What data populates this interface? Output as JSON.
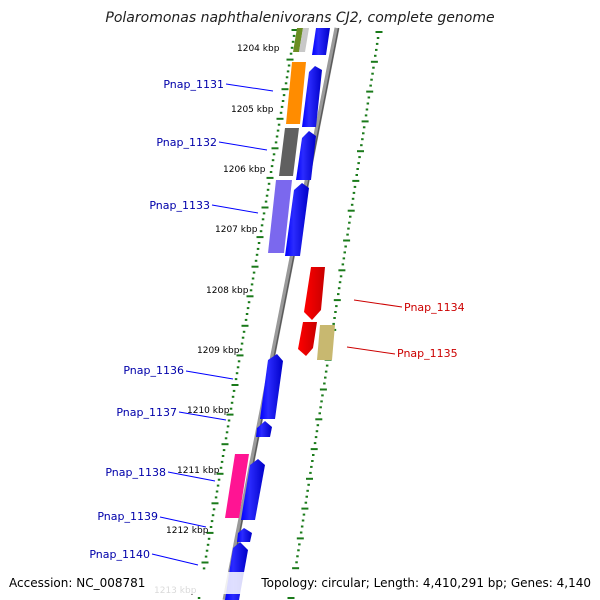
{
  "title": "Polaromonas naphthalenivorans CJ2, complete genome",
  "footer": {
    "accession": "Accession: NC_008781",
    "topology": "Topology: circular; Length: 4,410,291 bp; Genes: 4,140"
  },
  "colors": {
    "backbone": "#8c8c8c",
    "forward_strand": "#0000ff",
    "reverse_strand": "#ff0000",
    "forward_label": "#0000aa",
    "reverse_label": "#cc0000",
    "tick_dots": "#1a7a1a"
  },
  "ruler": [
    {
      "label": "1204 kbp"
    },
    {
      "label": "1205 kbp"
    },
    {
      "label": "1206 kbp"
    },
    {
      "label": "1207 kbp"
    },
    {
      "label": "1208 kbp"
    },
    {
      "label": "1209 kbp"
    },
    {
      "label": "1210 kbp"
    },
    {
      "label": "1211 kbp"
    },
    {
      "label": "1212 kbp"
    },
    {
      "label": "1213 kbp"
    }
  ],
  "genes": [
    {
      "name": "Pnap_1130_head",
      "label": "",
      "strand": "forward",
      "color": "#0000ff"
    },
    {
      "name": "Pnap_1131",
      "label": "Pnap_1131",
      "strand": "forward",
      "color": "#0000ff"
    },
    {
      "name": "Pnap_1132",
      "label": "Pnap_1132",
      "strand": "forward",
      "color": "#0000ff"
    },
    {
      "name": "Pnap_1133",
      "label": "Pnap_1133",
      "strand": "forward",
      "color": "#0000ff"
    },
    {
      "name": "Pnap_1134",
      "label": "Pnap_1134",
      "strand": "reverse",
      "color": "#ff0000"
    },
    {
      "name": "Pnap_1135",
      "label": "Pnap_1135",
      "strand": "reverse",
      "color": "#ff0000"
    },
    {
      "name": "Pnap_1136",
      "label": "Pnap_1136",
      "strand": "forward",
      "color": "#0000ff"
    },
    {
      "name": "Pnap_1137",
      "label": "Pnap_1137",
      "strand": "forward",
      "color": "#0000ff"
    },
    {
      "name": "Pnap_1138",
      "label": "Pnap_1138",
      "strand": "forward",
      "color": "#0000ff"
    },
    {
      "name": "Pnap_1139",
      "label": "Pnap_1139",
      "strand": "forward",
      "color": "#0000ff"
    },
    {
      "name": "Pnap_1140",
      "label": "Pnap_1140",
      "strand": "forward",
      "color": "#0000ff"
    }
  ],
  "cog_blocks": [
    {
      "name": "cog-1130-a",
      "color": "#6b8e23"
    },
    {
      "name": "cog-1130-b",
      "color": "#c8c8c8"
    },
    {
      "name": "cog-1131",
      "color": "#ff8c00"
    },
    {
      "name": "cog-1132",
      "color": "#606060"
    },
    {
      "name": "cog-1133",
      "color": "#7b68ee"
    },
    {
      "name": "cog-1135",
      "color": "#c8b870"
    },
    {
      "name": "cog-1138",
      "color": "#ff1493"
    }
  ]
}
